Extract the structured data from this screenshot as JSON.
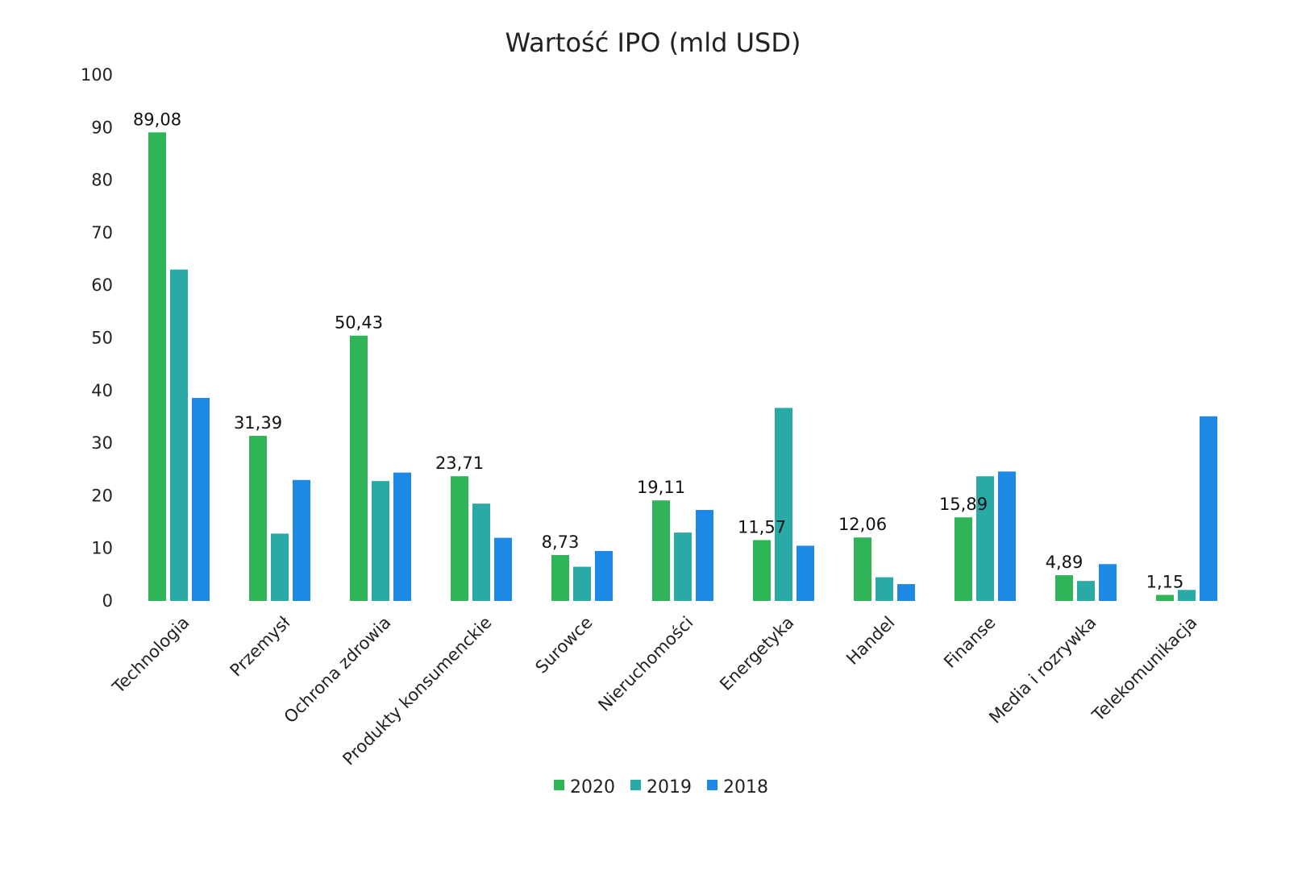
{
  "chart_data": {
    "type": "bar",
    "title": "Wartość IPO (mld USD)",
    "xlabel": "",
    "ylabel": "",
    "ylim": [
      0,
      100
    ],
    "yticks": [
      "0",
      "10",
      "20",
      "30",
      "40",
      "50",
      "60",
      "70",
      "80",
      "90",
      "100"
    ],
    "grid": false,
    "legend_position": "bottom",
    "categories": [
      "Technologia",
      "Przemysł",
      "Ochrona zdrowia",
      "Produkty konsumenckie",
      "Surowce",
      "Nieruchomości",
      "Energetyka",
      "Handel",
      "Finanse",
      "Media i rozrywka",
      "Telekomunikacja"
    ],
    "series": [
      {
        "name": "2020",
        "color": "#2fb457",
        "values": [
          89.08,
          31.39,
          50.43,
          23.71,
          8.73,
          19.11,
          11.57,
          12.06,
          15.89,
          4.89,
          1.15
        ],
        "labels": [
          "89,08",
          "31,39",
          "50,43",
          "23,71",
          "8,73",
          "19,11",
          "11,57",
          "12,06",
          "15,89",
          "4,89",
          "1,15"
        ]
      },
      {
        "name": "2019",
        "color": "#2aaaa7",
        "values": [
          63.0,
          12.8,
          22.8,
          18.5,
          6.5,
          13.0,
          36.7,
          4.5,
          23.7,
          3.8,
          2.1
        ]
      },
      {
        "name": "2018",
        "color": "#1e88e5",
        "values": [
          38.6,
          23.0,
          24.4,
          12.0,
          9.5,
          17.3,
          10.5,
          3.2,
          24.6,
          7.0,
          35.1
        ]
      }
    ]
  }
}
